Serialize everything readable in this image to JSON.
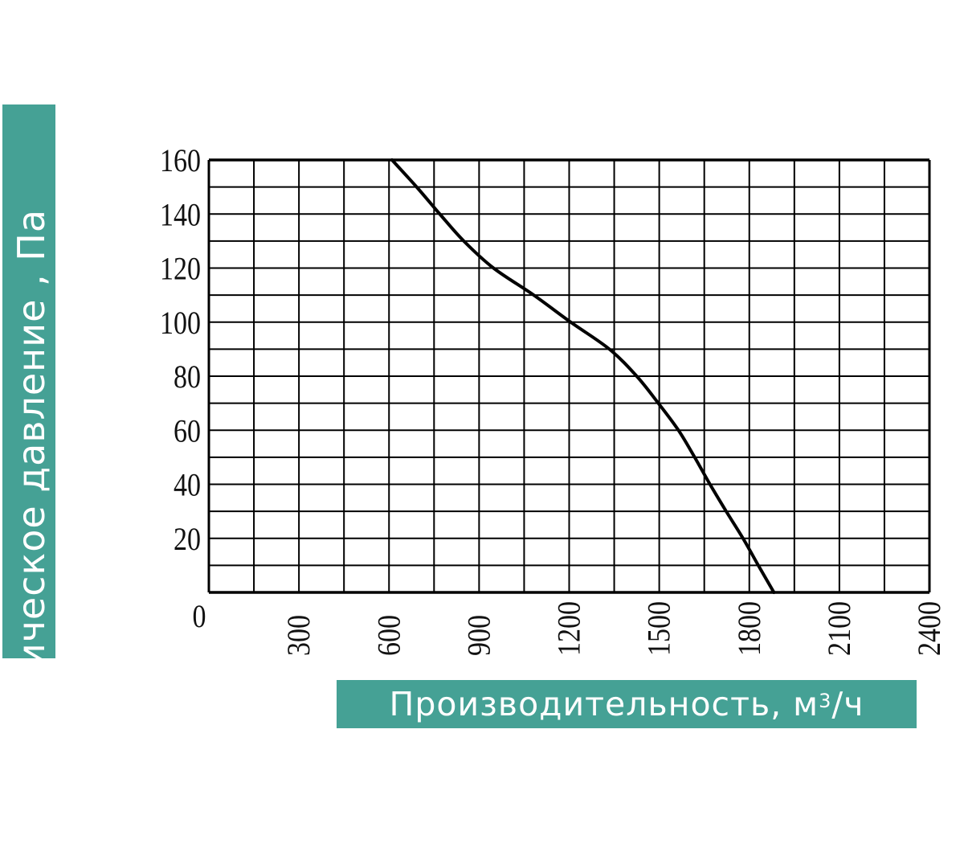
{
  "chart_data": {
    "type": "line",
    "xlabel": "Производительность, м",
    "xlabel_sup": "3",
    "xlabel_suffix": "/ч",
    "ylabel": "Статическое давление , Па",
    "xlim": [
      0,
      2400
    ],
    "ylim": [
      0,
      160
    ],
    "x_ticks": [
      0,
      300,
      600,
      900,
      1200,
      1500,
      1800,
      2100,
      2400
    ],
    "y_ticks": [
      20,
      40,
      60,
      80,
      100,
      120,
      140,
      160
    ],
    "grid": true,
    "grid_x_step": 150,
    "grid_y_step": 10,
    "label_color": "#45a195",
    "line_color": "#000000",
    "series": [
      {
        "x": [
          610,
          692,
          769,
          849,
          948,
          1082,
          1205,
          1334,
          1425,
          1497,
          1564,
          1618,
          1669,
          1723,
          1779,
          1830,
          1882
        ],
        "y": [
          160,
          150,
          140,
          130,
          120,
          110,
          100,
          90,
          80,
          70,
          60,
          50,
          40,
          30,
          20,
          10,
          0
        ]
      }
    ]
  }
}
